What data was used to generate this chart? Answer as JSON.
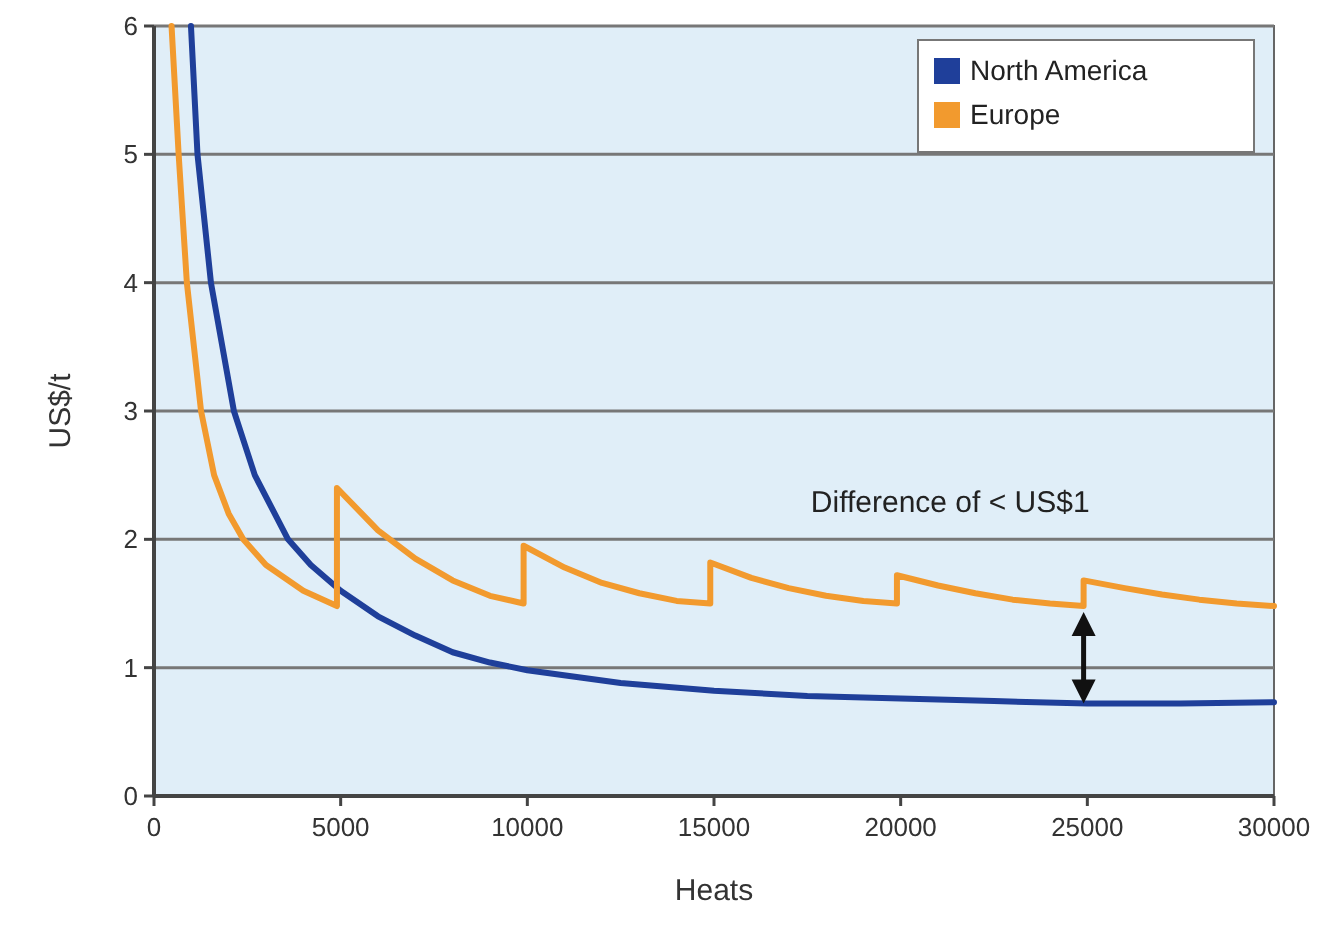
{
  "chart_data": {
    "type": "line",
    "xlabel": "Heats",
    "ylabel": "US$/t",
    "xlim": [
      0,
      30000
    ],
    "ylim": [
      0,
      6
    ],
    "xticks": [
      0,
      5000,
      10000,
      15000,
      20000,
      25000,
      30000
    ],
    "yticks": [
      0,
      1,
      2,
      3,
      4,
      5,
      6
    ],
    "grid": "y",
    "legend": "top right",
    "line_style": "solid",
    "marker": "none",
    "series": [
      {
        "name": "North America",
        "color": "#1f3f9a",
        "x": [
          990,
          1165,
          1525,
          2140,
          2700,
          3590,
          4200,
          5000,
          6000,
          7000,
          8000,
          9000,
          10000,
          12500,
          15000,
          17500,
          20000,
          22500,
          25000,
          27500,
          30000
        ],
        "values": [
          6,
          5,
          4,
          3,
          2.5,
          2,
          1.8,
          1.6,
          1.4,
          1.25,
          1.12,
          1.04,
          0.98,
          0.88,
          0.82,
          0.78,
          0.76,
          0.74,
          0.72,
          0.72,
          0.73
        ]
      },
      {
        "name": "Europe",
        "color": "#f29a2e",
        "x": [
          470,
          660,
          880,
          1260,
          1610,
          2000,
          2390,
          3000,
          4000,
          4900,
          4900,
          6000,
          7000,
          8000,
          9000,
          9900,
          9900,
          11000,
          12000,
          13000,
          14000,
          14900,
          14900,
          16000,
          17000,
          18000,
          19000,
          19900,
          19900,
          21000,
          22000,
          23000,
          24000,
          24900,
          24900,
          26000,
          27000,
          28000,
          29000,
          30000
        ],
        "values": [
          6,
          5,
          4,
          3,
          2.5,
          2.2,
          2,
          1.8,
          1.6,
          1.48,
          2.4,
          2.07,
          1.85,
          1.68,
          1.56,
          1.5,
          1.95,
          1.78,
          1.66,
          1.58,
          1.52,
          1.5,
          1.82,
          1.7,
          1.62,
          1.56,
          1.52,
          1.5,
          1.72,
          1.64,
          1.58,
          1.53,
          1.5,
          1.48,
          1.68,
          1.62,
          1.57,
          1.53,
          1.5,
          1.48
        ]
      }
    ],
    "annotations": [
      "Difference of < US$1"
    ]
  }
}
